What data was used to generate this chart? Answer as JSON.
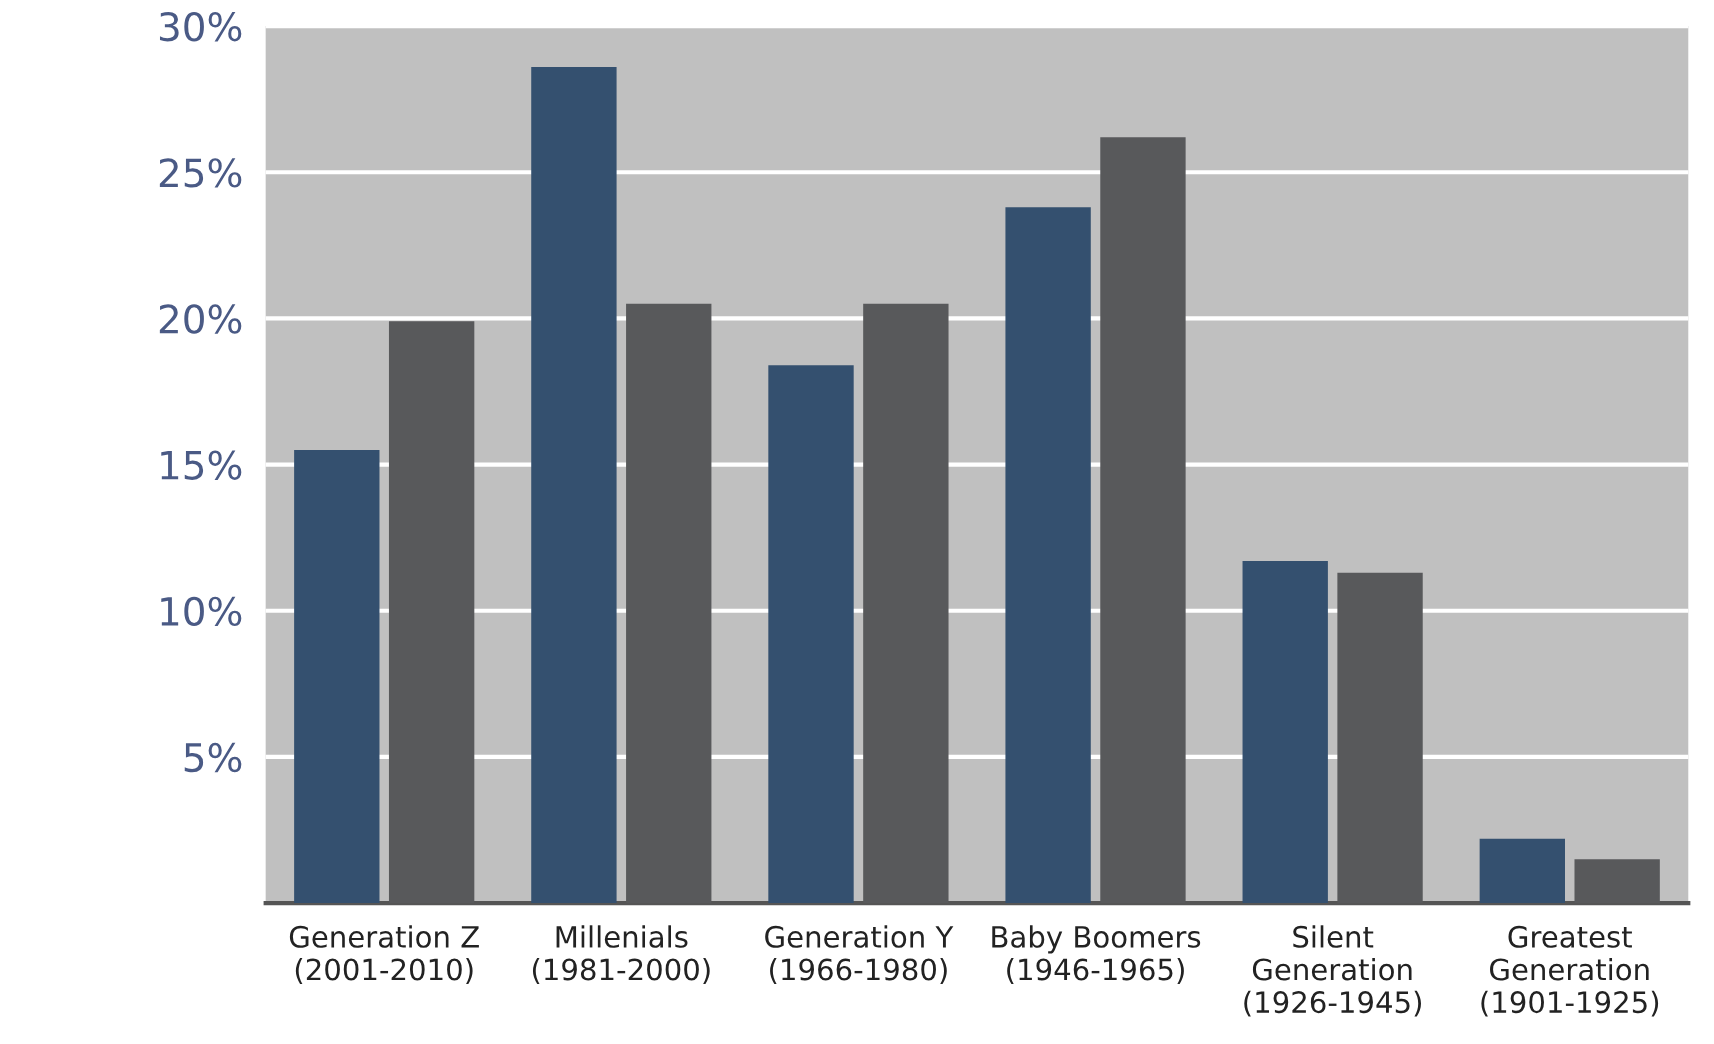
{
  "chart_data": {
    "type": "bar",
    "categories": [
      "Generation Z\n(2001-2010)",
      "Millenials\n(1981-2000)",
      "Generation Y\n(1966-1980)",
      "Baby Boomers\n(1946-1965)",
      "Silent\nGeneration\n(1926-1945)",
      "Greatest\nGeneration\n(1901-1925)"
    ],
    "series": [
      {
        "color": "#34506f",
        "values": [
          15.5,
          28.6,
          18.4,
          23.8,
          11.7,
          2.2
        ]
      },
      {
        "color": "#58595b",
        "values": [
          19.9,
          20.5,
          20.5,
          26.2,
          11.3,
          1.5
        ]
      }
    ],
    "ylim": [
      0,
      30
    ],
    "yticks": [
      {
        "value": 5,
        "label": "5%"
      },
      {
        "value": 10,
        "label": "10%"
      },
      {
        "value": 15,
        "label": "15%"
      },
      {
        "value": 20,
        "label": "20%"
      },
      {
        "value": 25,
        "label": "25%"
      },
      {
        "value": 30,
        "label": "30%"
      }
    ],
    "grid": "y"
  }
}
